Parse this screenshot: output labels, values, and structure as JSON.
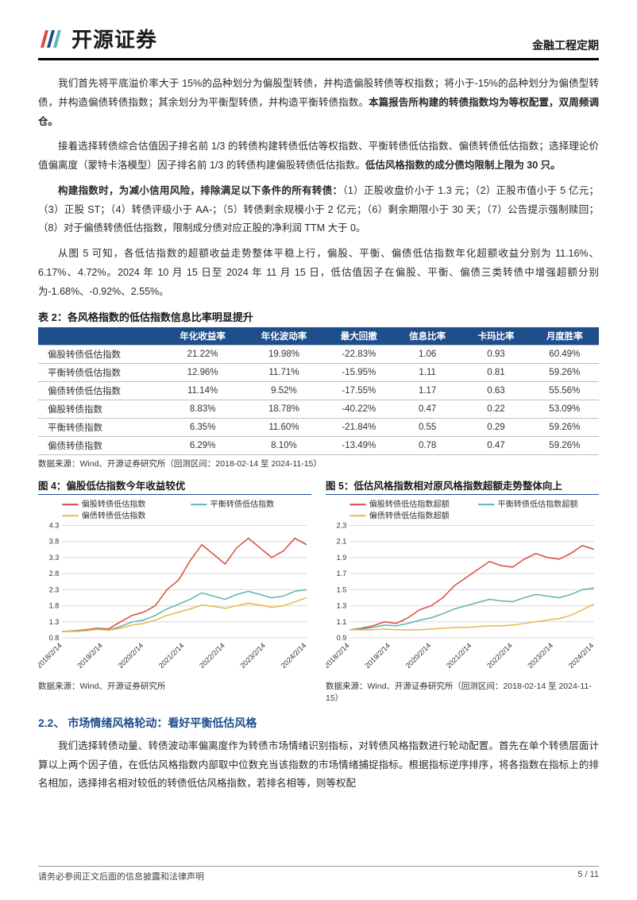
{
  "header": {
    "logo_text": "开源证券",
    "doc_type": "金融工程定期"
  },
  "paragraphs": {
    "p1a": "我们首先将平底溢价率大于 15%的品种划分为偏股型转债，并构造偏股转债等权指数；将小于-15%的品种划分为偏债型转债，并构造偏债转债指数；其余划分为平衡型转债，并构造平衡转债指数。",
    "p1b": "本篇报告所构建的转债指数均为等权配置，双周频调仓。",
    "p2a": "接着选择转债综合估值因子排名前 1/3 的转债构建转债低估等权指数、平衡转债低估指数、偏债转债低估指数；选择理论价值偏离度（蒙特卡洛模型）因子排名前 1/3 的转债构建偏股转债低估指数。",
    "p2b": "低估风格指数的成分债均限制上限为 30 只。",
    "p3a": "构建指数时，为减小信用风险，排除满足以下条件的所有转债：",
    "p3b": "（1）正股收盘价小于 1.3 元；（2）正股市值小于 5 亿元；（3）正股 ST；（4）转债评级小于 AA-；（5）转债剩余规模小于 2 亿元；（6）剩余期限小于 30 天；（7）公告提示强制赎回；（8）对于偏债转债低估指数，限制成分债对应正股的净利润 TTM 大于 0。",
    "p4": "从图 5 可知，各低估指数的超额收益走势整体平稳上行，偏股、平衡、偏债低估指数年化超额收益分别为 11.16%、6.17%、4.72%。2024 年 10 月 15 日至 2024 年 11 月 15 日，低估值因子在偏股、平衡、偏债三类转债中增强超额分别为-1.68%、-0.92%、2.55%。",
    "p5": "我们选择转债动量、转债波动率偏离度作为转债市场情绪识别指标，对转债风格指数进行轮动配置。首先在单个转债层面计算以上两个因子值，在低估风格指数内部取中位数充当该指数的市场情绪捕捉指标。根据指标逆序排序，将各指数在指标上的排名相加，选择排名相对较低的转债低估风格指数，若排名相等，则等权配"
  },
  "table2": {
    "title": "表 2：各风格指数的低估指数信息比率明显提升",
    "header_bg": "#1f4e8c",
    "header_fg": "#ffffff",
    "columns": [
      "",
      "年化收益率",
      "年化波动率",
      "最大回撤",
      "信息比率",
      "卡玛比率",
      "月度胜率"
    ],
    "rows": [
      [
        "偏股转债低估指数",
        "21.22%",
        "19.98%",
        "-22.83%",
        "1.06",
        "0.93",
        "60.49%"
      ],
      [
        "平衡转债低估指数",
        "12.96%",
        "11.71%",
        "-15.95%",
        "1.11",
        "0.81",
        "59.26%"
      ],
      [
        "偏债转债低估指数",
        "11.14%",
        "9.52%",
        "-17.55%",
        "1.17",
        "0.63",
        "55.56%"
      ],
      [
        "偏股转债指数",
        "8.83%",
        "18.78%",
        "-40.22%",
        "0.47",
        "0.22",
        "53.09%"
      ],
      [
        "平衡转债指数",
        "6.35%",
        "11.60%",
        "-21.84%",
        "0.55",
        "0.29",
        "59.26%"
      ],
      [
        "偏债转债指数",
        "6.29%",
        "8.10%",
        "-13.49%",
        "0.78",
        "0.47",
        "59.26%"
      ]
    ],
    "source": "数据来源：Wind、开源证券研究所（回测区间：2018-02-14 至 2024-11-15）"
  },
  "chart4": {
    "title": "图 4：偏股低估指数今年收益较优",
    "source": "数据来源：Wind、开源证券研究所",
    "x_labels": [
      "2018/2/14",
      "2019/2/14",
      "2020/2/14",
      "2021/2/14",
      "2022/2/14",
      "2023/2/14",
      "2024/2/14"
    ],
    "ylim": [
      0.8,
      4.3
    ],
    "yticks": [
      0.8,
      1.3,
      1.8,
      2.3,
      2.8,
      3.3,
      3.8,
      4.3
    ],
    "grid_color": "#d9d9d9",
    "background": "#ffffff",
    "axis_fontsize": 9,
    "legend_fontsize": 10,
    "line_width": 1.5,
    "series": [
      {
        "name": "偏股转债低估指数",
        "color": "#d94c3b",
        "values": [
          1.0,
          1.02,
          1.05,
          1.1,
          1.08,
          1.3,
          1.5,
          1.6,
          1.8,
          2.3,
          2.6,
          3.2,
          3.7,
          3.4,
          3.1,
          3.6,
          3.9,
          3.6,
          3.3,
          3.5,
          3.9,
          3.7
        ]
      },
      {
        "name": "平衡转债低估指数",
        "color": "#5bb5b0",
        "values": [
          1.0,
          1.01,
          1.03,
          1.08,
          1.05,
          1.15,
          1.3,
          1.35,
          1.5,
          1.7,
          1.85,
          2.0,
          2.2,
          2.1,
          2.0,
          2.15,
          2.25,
          2.15,
          2.05,
          2.1,
          2.25,
          2.3
        ]
      },
      {
        "name": "偏债转债低估指数",
        "color": "#e8b94a",
        "values": [
          1.0,
          1.0,
          1.02,
          1.06,
          1.04,
          1.1,
          1.2,
          1.25,
          1.35,
          1.5,
          1.6,
          1.7,
          1.82,
          1.78,
          1.72,
          1.8,
          1.88,
          1.82,
          1.75,
          1.8,
          1.92,
          2.05
        ]
      }
    ]
  },
  "chart5": {
    "title": "图 5：低估风格指数相对原风格指数超额走势整体向上",
    "source": "数据来源：Wind、开源证券研究所（回测区间：2018-02-14 至 2024-11-15）",
    "x_labels": [
      "2018/2/14",
      "2019/2/14",
      "2020/2/14",
      "2021/2/14",
      "2022/2/14",
      "2023/2/14",
      "2024/2/14"
    ],
    "ylim": [
      0.9,
      2.3
    ],
    "yticks": [
      0.9,
      1.1,
      1.3,
      1.5,
      1.7,
      1.9,
      2.1,
      2.3
    ],
    "grid_color": "#d9d9d9",
    "background": "#ffffff",
    "axis_fontsize": 9,
    "legend_fontsize": 10,
    "line_width": 1.5,
    "series": [
      {
        "name": "偏股转债低估指数超额",
        "color": "#d94c3b",
        "values": [
          1.0,
          1.02,
          1.05,
          1.1,
          1.08,
          1.15,
          1.25,
          1.3,
          1.4,
          1.55,
          1.65,
          1.75,
          1.85,
          1.8,
          1.78,
          1.88,
          1.95,
          1.9,
          1.88,
          1.95,
          2.05,
          2.0
        ]
      },
      {
        "name": "平衡转债低估指数超额",
        "color": "#5bb5b0",
        "values": [
          1.0,
          1.01,
          1.03,
          1.06,
          1.05,
          1.08,
          1.12,
          1.15,
          1.2,
          1.26,
          1.3,
          1.34,
          1.38,
          1.36,
          1.35,
          1.4,
          1.44,
          1.42,
          1.4,
          1.44,
          1.5,
          1.52
        ]
      },
      {
        "name": "偏债转债低估指数超额",
        "color": "#e8b94a",
        "values": [
          1.0,
          1.0,
          1.0,
          1.01,
          1.0,
          1.0,
          1.0,
          1.01,
          1.02,
          1.03,
          1.03,
          1.04,
          1.05,
          1.05,
          1.06,
          1.08,
          1.1,
          1.12,
          1.14,
          1.18,
          1.25,
          1.32
        ]
      }
    ]
  },
  "section_heading": "2.2、 市场情绪风格轮动：看好平衡低估风格",
  "footer": {
    "disclaimer": "请务必参阅正文后面的信息披露和法律声明",
    "pagenum": "5 / 11"
  },
  "colors": {
    "accent": "#1f4e8c"
  }
}
